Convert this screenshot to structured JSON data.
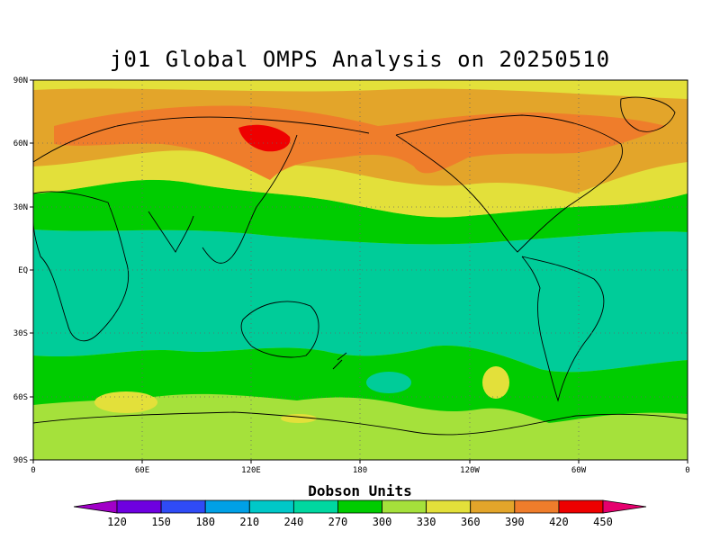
{
  "title": "j01 Global OMPS Analysis on 20250510",
  "map": {
    "lat_ticks": [
      "90N",
      "60N",
      "30N",
      "EQ",
      "30S",
      "60S",
      "90S"
    ],
    "lon_ticks": [
      "0",
      "60E",
      "120E",
      "180",
      "120W",
      "60W",
      "0"
    ],
    "grid_style": "dotted",
    "regions": [
      {
        "name": "background_330",
        "color": "#a5e13b"
      },
      {
        "name": "tropical_belt_270",
        "color": "#00cc99"
      },
      {
        "name": "subtropical_300",
        "color": "#00cc00"
      },
      {
        "name": "northern_360",
        "color": "#e3e03a"
      },
      {
        "name": "northern_390",
        "color": "#e3a52a"
      },
      {
        "name": "northern_420",
        "color": "#ef7d2b"
      },
      {
        "name": "siberia_450",
        "color": "#ee0000"
      }
    ]
  },
  "colorbar": {
    "title": "Dobson Units",
    "ticks": [
      "120",
      "150",
      "180",
      "210",
      "240",
      "270",
      "300",
      "330",
      "360",
      "390",
      "420",
      "450"
    ],
    "colors": [
      "#a100c8",
      "#6e00e1",
      "#2f4bf6",
      "#00a0e6",
      "#00c8c8",
      "#00d7a0",
      "#00cc00",
      "#a5e13b",
      "#e3e03a",
      "#e3a52a",
      "#ef7d2b",
      "#ee0000",
      "#e6006e"
    ]
  }
}
